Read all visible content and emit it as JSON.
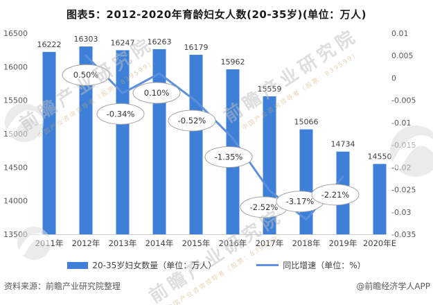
{
  "chart_data": {
    "type": "bar-line-combo",
    "title": "图表5：2012-2020年育龄妇女人数(20-35岁)(单位：万人)",
    "categories": [
      "2011年",
      "2012年",
      "2013年",
      "2014年",
      "2015年",
      "2016年",
      "2017年",
      "2018年",
      "2019年",
      "2020年E"
    ],
    "series": [
      {
        "name": "20-35岁妇女数量（单位：万人）",
        "type": "bar",
        "color": "#3E7FD8",
        "values": [
          16222,
          16303,
          16247,
          16263,
          16179,
          15962,
          15559,
          15066,
          14734,
          14550
        ]
      },
      {
        "name": "同比增速（单位：%）",
        "type": "line",
        "color": "#5C90DC",
        "x_indices": [
          1,
          2,
          3,
          4,
          5,
          6,
          7,
          8
        ],
        "values": [
          0.005,
          -0.0034,
          0.001,
          -0.0052,
          -0.0135,
          -0.0252,
          -0.0317,
          -0.0221
        ],
        "point_labels": [
          "0.50%",
          "-0.34%",
          "0.10%",
          "-0.52%",
          "-1.35%",
          "-2.52%",
          "-3.17%",
          "-2.21%"
        ]
      }
    ],
    "left_axis": {
      "min": 13500,
      "max": 16500,
      "tick_labels": [
        "16500",
        "16000",
        "15500",
        "15000",
        "14500",
        "14000",
        "13500"
      ]
    },
    "right_axis": {
      "min": -0.035,
      "max": 0.01,
      "tick_labels": [
        "0.01",
        "0.005",
        "0",
        "-0.005",
        "-0.01",
        "-0.015",
        "-0.02",
        "-0.025",
        "-0.03",
        "-0.035"
      ]
    },
    "grid": false,
    "legend_position": "bottom",
    "colors": {
      "bar": "#3E7FD8",
      "line": "#5C90DC",
      "axis_text": "#595959",
      "value_label": "#3f3f3f",
      "axis_line": "#cccccc",
      "bubble_stroke": "#a3a3a3"
    }
  },
  "footer": {
    "source": "资料来源：前瞻产业研究院整理",
    "credit": "@前瞻经济学人APP"
  },
  "watermark": {
    "main_text": "前瞻产业研究院",
    "sub_text": "中国产业咨询领导者（股票：839599）",
    "logo_name": "qianzhan-logo"
  }
}
